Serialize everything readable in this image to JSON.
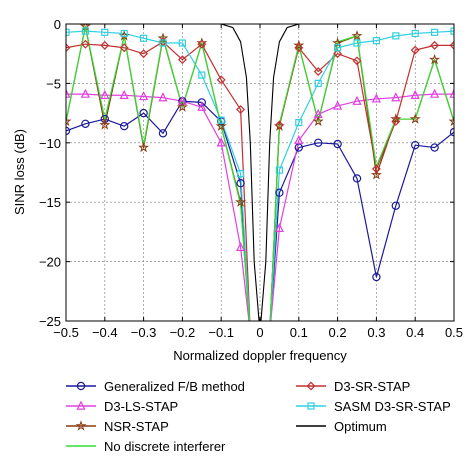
{
  "chart_data": {
    "type": "line",
    "title": "",
    "xlabel": "Normalized doppler frequency",
    "ylabel": "SINR loss (dB)",
    "xlim": [
      -0.5,
      0.5
    ],
    "ylim": [
      -25,
      0
    ],
    "xticks": [
      -0.5,
      -0.4,
      -0.3,
      -0.2,
      -0.1,
      0,
      0.1,
      0.2,
      0.3,
      0.4,
      0.5
    ],
    "xtick_labels": [
      "−0.5",
      "−0.4",
      "−0.3",
      "−0.2",
      "−0.1",
      "0",
      "0.1",
      "0.2",
      "0.3",
      "0.4",
      "0.5"
    ],
    "yticks": [
      0,
      -5,
      -10,
      -15,
      -20,
      -25
    ],
    "ytick_labels": [
      "0",
      "−5",
      "−10",
      "−15",
      "−20",
      "−25"
    ],
    "grid": true,
    "legend_position": "bottom",
    "x": [
      -0.5,
      -0.45,
      -0.4,
      -0.35,
      -0.3,
      -0.25,
      -0.2,
      -0.15,
      -0.1,
      -0.05,
      -0.025,
      0,
      0.025,
      0.05,
      0.1,
      0.15,
      0.2,
      0.25,
      0.3,
      0.35,
      0.4,
      0.45,
      0.5
    ],
    "series": [
      {
        "name": "Generalized F/B method",
        "color": "#1a1a9a",
        "marker": "circle",
        "values": [
          -9.0,
          -8.4,
          -8.0,
          -8.6,
          -7.5,
          -9.2,
          -6.5,
          -6.6,
          -8.2,
          -13.4,
          -26,
          -26,
          -26,
          -14.2,
          -10.4,
          -10.0,
          -10.1,
          -13.0,
          -21.3,
          -15.3,
          -10.2,
          -10.4,
          -9.1
        ]
      },
      {
        "name": "D3-LS-STAP",
        "color": "#e040e0",
        "marker": "triangle",
        "values": [
          -5.9,
          -5.9,
          -6.0,
          -6.0,
          -6.1,
          -6.2,
          -6.5,
          -7.0,
          -10.0,
          -18.8,
          -26,
          -26,
          -26,
          -17.2,
          -9.8,
          -7.6,
          -6.9,
          -6.5,
          -6.3,
          -6.2,
          -6.0,
          -5.9,
          -5.9
        ]
      },
      {
        "name": "NSR-STAP",
        "color": "#8b3a10",
        "marker": "star",
        "values": [
          -8.2,
          -0.2,
          -8.5,
          -1.0,
          -10.4,
          -1.2,
          -7.0,
          -1.6,
          -8.6,
          -15.0,
          -26,
          -26,
          -26,
          -8.6,
          -1.8,
          -8.2,
          -1.6,
          -1.0,
          -12.7,
          -8.0,
          -8.0,
          -3.0,
          -8.2
        ]
      },
      {
        "name": "D3-SR-STAP",
        "color": "#c03030",
        "marker": "diamond",
        "values": [
          -2.0,
          -1.7,
          -1.8,
          -2.0,
          -2.5,
          -1.5,
          -3.0,
          -1.7,
          -4.7,
          -7.2,
          -26,
          -26,
          -26,
          -8.5,
          -2.0,
          -4.0,
          -2.5,
          -3.1,
          -12.2,
          -8.2,
          -2.2,
          -1.8,
          -1.8
        ]
      },
      {
        "name": "SASM D3-SR-STAP",
        "color": "#30d0e0",
        "marker": "square",
        "values": [
          -0.7,
          -0.6,
          -0.7,
          -0.8,
          -1.2,
          -1.6,
          -1.6,
          -4.3,
          -8.1,
          -12.6,
          -26,
          -26,
          -26,
          -12.3,
          -8.3,
          -5.0,
          -2.0,
          -1.6,
          -1.4,
          -1.0,
          -0.8,
          -0.7,
          -0.6
        ]
      },
      {
        "name": "No discrete interferer",
        "color": "#33dd33",
        "marker": "none",
        "values": [
          -8.2,
          -0.2,
          -8.0,
          -1.0,
          -10.2,
          -1.1,
          -7.0,
          -1.6,
          -8.6,
          -15.2,
          -26,
          -26,
          -26,
          -8.4,
          -1.8,
          -8.2,
          -1.5,
          -1.0,
          -12.0,
          -8.0,
          -8.0,
          -3.0,
          -8.2
        ]
      },
      {
        "name": "Optimum",
        "color": "#000000",
        "marker": "none",
        "x": [
          -0.5,
          -0.1,
          -0.07,
          -0.05,
          -0.035,
          -0.025,
          -0.015,
          0,
          0.015,
          0.025,
          0.035,
          0.05,
          0.07,
          0.1,
          0.5
        ],
        "values": [
          0,
          0,
          -0.3,
          -1.5,
          -4.5,
          -10,
          -20,
          -26,
          -20,
          -10,
          -4.5,
          -1.5,
          -0.3,
          0,
          0
        ]
      }
    ],
    "legend_order": [
      0,
      3,
      1,
      4,
      2,
      5,
      6
    ]
  }
}
